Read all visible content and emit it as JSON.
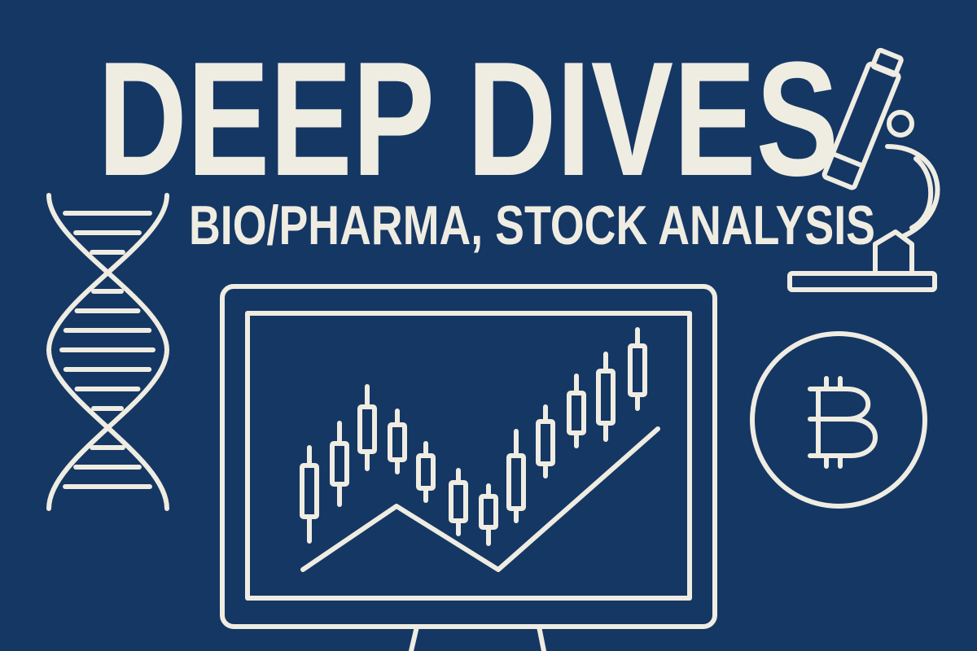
{
  "header": {
    "title": "DEEP DIVES",
    "subtitle": "BIO/PHARMA, STOCK ANALYSIS"
  }
}
